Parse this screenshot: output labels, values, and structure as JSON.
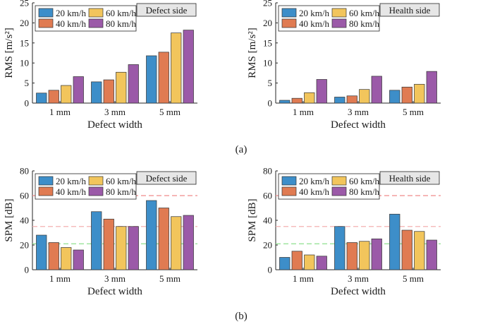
{
  "figure": {
    "caption_a": "(a)",
    "caption_b": "(b)",
    "series_colors": [
      "#3d8ec9",
      "#e07b52",
      "#f2c55c",
      "#9b5aa8"
    ]
  },
  "chart_data": [
    {
      "type": "bar",
      "panel": "a-left",
      "title": "Defect side",
      "xlabel": "Defect width",
      "ylabel": "RMS [m/s²]",
      "categories": [
        "1 mm",
        "3 mm",
        "5 mm"
      ],
      "ylim": [
        0,
        25
      ],
      "yticks": [
        0,
        5,
        10,
        15,
        20,
        25
      ],
      "legend": [
        "20 km/h",
        "40 km/h",
        "60 km/h",
        "80 km/h"
      ],
      "series": [
        {
          "name": "20 km/h",
          "values": [
            2.5,
            5.3,
            11.8
          ]
        },
        {
          "name": "40 km/h",
          "values": [
            3.2,
            5.8,
            12.7
          ]
        },
        {
          "name": "60 km/h",
          "values": [
            4.4,
            7.7,
            17.5
          ]
        },
        {
          "name": "80 km/h",
          "values": [
            6.6,
            9.6,
            18.2
          ]
        }
      ],
      "hlines": []
    },
    {
      "type": "bar",
      "panel": "a-right",
      "title": "Health side",
      "xlabel": "Defect width",
      "ylabel": "RMS [m/s²]",
      "categories": [
        "1 mm",
        "3 mm",
        "5 mm"
      ],
      "ylim": [
        0,
        25
      ],
      "yticks": [
        0,
        5,
        10,
        15,
        20,
        25
      ],
      "legend": [
        "20 km/h",
        "40 km/h",
        "60 km/h",
        "80 km/h"
      ],
      "series": [
        {
          "name": "20 km/h",
          "values": [
            0.7,
            1.5,
            3.2
          ]
        },
        {
          "name": "40 km/h",
          "values": [
            1.2,
            1.8,
            4.0
          ]
        },
        {
          "name": "60 km/h",
          "values": [
            2.6,
            3.4,
            4.7
          ]
        },
        {
          "name": "80 km/h",
          "values": [
            5.9,
            6.7,
            7.9
          ]
        }
      ],
      "hlines": []
    },
    {
      "type": "bar",
      "panel": "b-left",
      "title": "Defect side",
      "xlabel": "Defect width",
      "ylabel": "SPM [dB]",
      "categories": [
        "1 mm",
        "3 mm",
        "5 mm"
      ],
      "ylim": [
        0,
        80
      ],
      "yticks": [
        0,
        20,
        40,
        60,
        80
      ],
      "legend": [
        "20 km/h",
        "40 km/h",
        "60 km/h",
        "80 km/h"
      ],
      "series": [
        {
          "name": "20 km/h",
          "values": [
            28,
            47,
            56
          ]
        },
        {
          "name": "40 km/h",
          "values": [
            22,
            41,
            50
          ]
        },
        {
          "name": "60 km/h",
          "values": [
            18,
            35,
            43
          ]
        },
        {
          "name": "80 km/h",
          "values": [
            16,
            35,
            44
          ]
        }
      ],
      "hlines": [
        {
          "value": 60,
          "color": "#f08a8a"
        },
        {
          "value": 35,
          "color": "#f4b0b0"
        },
        {
          "value": 21,
          "color": "#8fe08f"
        }
      ]
    },
    {
      "type": "bar",
      "panel": "b-right",
      "title": "Health side",
      "xlabel": "Defect width",
      "ylabel": "SPM [dB]",
      "categories": [
        "1 mm",
        "3 mm",
        "5 mm"
      ],
      "ylim": [
        0,
        80
      ],
      "yticks": [
        0,
        20,
        40,
        60,
        80
      ],
      "legend": [
        "20 km/h",
        "40 km/h",
        "60 km/h",
        "80 km/h"
      ],
      "series": [
        {
          "name": "20 km/h",
          "values": [
            10,
            35,
            45
          ]
        },
        {
          "name": "40 km/h",
          "values": [
            15,
            22,
            32
          ]
        },
        {
          "name": "60 km/h",
          "values": [
            12,
            23,
            31
          ]
        },
        {
          "name": "80 km/h",
          "values": [
            11,
            25,
            24
          ]
        }
      ],
      "hlines": [
        {
          "value": 60,
          "color": "#f08a8a"
        },
        {
          "value": 35,
          "color": "#f4b0b0"
        },
        {
          "value": 21,
          "color": "#8fe08f"
        }
      ]
    }
  ]
}
